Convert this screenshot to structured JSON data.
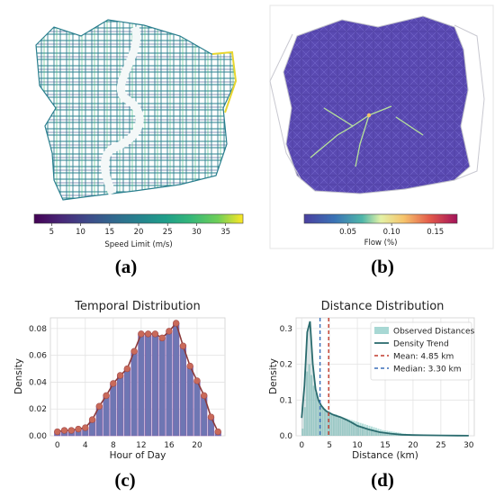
{
  "panels": {
    "a": {
      "label": "(a)",
      "colorbar": {
        "label": "Speed Limit (m/s)",
        "ticks": [
          "5",
          "10",
          "15",
          "20",
          "25",
          "30",
          "35"
        ],
        "range": [
          2,
          38
        ],
        "colormap": "viridis"
      }
    },
    "b": {
      "label": "(b)",
      "colorbar": {
        "label": "Flow (%)",
        "ticks": [
          "0.05",
          "0.10",
          "0.15"
        ],
        "range": [
          0,
          0.175
        ],
        "colormap": "plasma"
      }
    },
    "c": {
      "label": "(c)"
    },
    "d": {
      "label": "(d)"
    }
  },
  "chart_data": [
    {
      "panel": "c",
      "type": "bar",
      "title": "Temporal Distribution",
      "xlabel": "Hour of Day",
      "ylabel": "Density",
      "x": [
        0,
        1,
        2,
        3,
        4,
        5,
        6,
        7,
        8,
        9,
        10,
        11,
        12,
        13,
        14,
        15,
        16,
        17,
        18,
        19,
        20,
        21,
        22,
        23
      ],
      "values": [
        0.003,
        0.004,
        0.004,
        0.005,
        0.006,
        0.012,
        0.022,
        0.03,
        0.039,
        0.045,
        0.05,
        0.063,
        0.076,
        0.076,
        0.076,
        0.073,
        0.078,
        0.084,
        0.067,
        0.052,
        0.041,
        0.03,
        0.014,
        0.003
      ],
      "xticks": [
        "0",
        "4",
        "8",
        "12",
        "16",
        "20"
      ],
      "yticks": [
        "0.00",
        "0.02",
        "0.04",
        "0.06",
        "0.08"
      ],
      "xlim": [
        -1,
        24
      ],
      "ylim": [
        0,
        0.088
      ],
      "grid": true,
      "colors": {
        "bar": "#6e76b3",
        "bar_edge": "#8a5ca8",
        "line": "#8b3a3a",
        "marker": "#c96a5a"
      }
    },
    {
      "panel": "d",
      "type": "area",
      "title": "Distance Distribution",
      "xlabel": "Distance (km)",
      "ylabel": "Density",
      "xlim": [
        -1,
        31
      ],
      "ylim": [
        0,
        0.33
      ],
      "xticks": [
        "0",
        "5",
        "10",
        "15",
        "20",
        "25",
        "30"
      ],
      "yticks": [
        "0.0",
        "0.1",
        "0.2",
        "0.3"
      ],
      "grid": true,
      "legend": {
        "position": "top-right",
        "entries": [
          {
            "label": "Observed Distances",
            "kind": "patch",
            "color": "#a8d8d4"
          },
          {
            "label": "Density Trend",
            "kind": "line",
            "color": "#2a6b6e"
          },
          {
            "label": "Mean: 4.85 km",
            "kind": "dashed",
            "color": "#c0392b"
          },
          {
            "label": "Median: 3.30 km",
            "kind": "dashed",
            "color": "#3a6fb8"
          }
        ]
      },
      "mean": 4.85,
      "median": 3.3,
      "histogram": {
        "bin_width": 0.4,
        "values": [
          0.02,
          0.08,
          0.18,
          0.2,
          0.17,
          0.14,
          0.12,
          0.1,
          0.09,
          0.08,
          0.075,
          0.07,
          0.065,
          0.06,
          0.058,
          0.06,
          0.056,
          0.054,
          0.052,
          0.05,
          0.048,
          0.046,
          0.044,
          0.042,
          0.04,
          0.038,
          0.036,
          0.034,
          0.032,
          0.03,
          0.028,
          0.026,
          0.024,
          0.022,
          0.02,
          0.018,
          0.016,
          0.015,
          0.014,
          0.013,
          0.012,
          0.011,
          0.01,
          0.009,
          0.008,
          0.007,
          0.006,
          0.005,
          0.005,
          0.004,
          0.004,
          0.003,
          0.003,
          0.002,
          0.002,
          0.002,
          0.001,
          0.001,
          0.001,
          0.001
        ]
      },
      "density_trend": {
        "x": [
          0,
          0.5,
          1,
          1.5,
          2,
          2.5,
          3,
          3.5,
          4,
          4.5,
          5,
          5.5,
          6,
          7,
          8,
          9,
          10,
          12,
          14,
          16,
          18,
          20,
          22,
          25,
          28,
          30
        ],
        "y": [
          0.05,
          0.14,
          0.29,
          0.32,
          0.2,
          0.13,
          0.1,
          0.085,
          0.075,
          0.068,
          0.064,
          0.06,
          0.057,
          0.052,
          0.045,
          0.037,
          0.028,
          0.018,
          0.01,
          0.006,
          0.003,
          0.002,
          0.0015,
          0.001,
          0.0005,
          0.0003
        ]
      }
    }
  ]
}
